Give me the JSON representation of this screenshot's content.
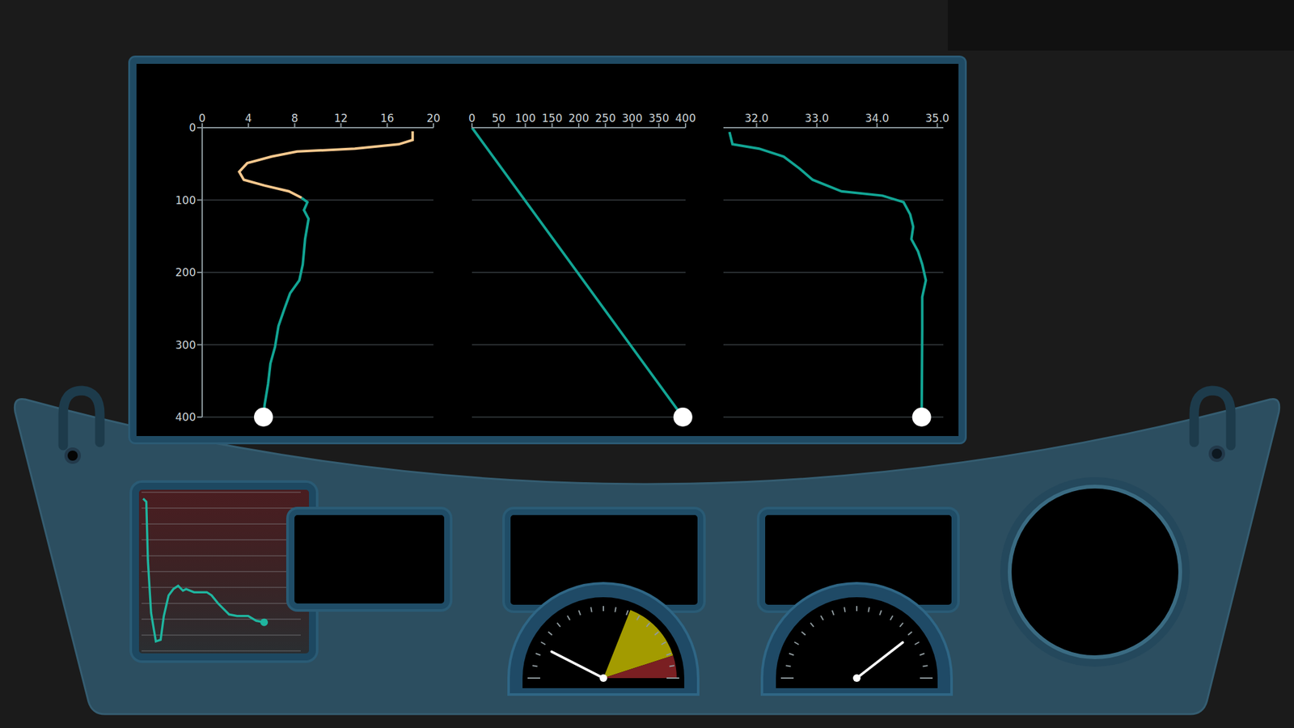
{
  "chart_data": [
    {
      "type": "line",
      "xlim": [
        0,
        20
      ],
      "xticks": [
        0,
        4,
        8,
        12,
        16,
        20
      ],
      "ylim": [
        0,
        400
      ],
      "yticks": [
        0,
        100,
        200,
        300,
        400
      ],
      "grid": true,
      "series": [
        {
          "color": "#f6c88e",
          "x": [
            18.2,
            18.2,
            17.0,
            13.2,
            8.2,
            6.0,
            3.9,
            3.2,
            3.6,
            5.4,
            7.5,
            8.6
          ],
          "y": [
            5,
            17,
            23,
            29,
            33,
            40,
            49,
            61,
            72,
            80,
            88,
            97
          ]
        },
        {
          "color": "#12a594",
          "marker": "end",
          "x": [
            8.6,
            9.1,
            8.8,
            9.2,
            8.9,
            8.7,
            8.4,
            7.6,
            7.1,
            6.6,
            6.3,
            5.9,
            5.7,
            5.4,
            5.3
          ],
          "y": [
            97,
            103,
            114,
            126,
            154,
            189,
            211,
            229,
            251,
            274,
            303,
            326,
            354,
            383,
            400
          ]
        }
      ]
    },
    {
      "type": "line",
      "xlim": [
        0,
        400
      ],
      "xticks": [
        0,
        50,
        100,
        150,
        200,
        250,
        300,
        350,
        400
      ],
      "ylim": [
        0,
        400
      ],
      "yticks": [
        0,
        100,
        200,
        300,
        400
      ],
      "grid": true,
      "tick_labels": "x",
      "series": [
        {
          "color": "#12a594",
          "marker": "end",
          "x": [
            0,
            395
          ],
          "y": [
            0,
            400
          ]
        }
      ]
    },
    {
      "type": "line",
      "xlim": [
        31.45,
        35.1
      ],
      "xticks": [
        {
          "value": 32,
          "label": "32.0"
        },
        {
          "value": 33,
          "label": "33.0"
        },
        {
          "value": 34,
          "label": "34.0"
        },
        {
          "value": 35,
          "label": "35.0"
        }
      ],
      "ylim": [
        0,
        400
      ],
      "yticks": [
        0,
        100,
        200,
        300,
        400
      ],
      "grid": true,
      "tick_labels": "x",
      "series": [
        {
          "color": "#12a594",
          "marker": "end",
          "x": [
            31.55,
            31.6,
            32.04,
            32.45,
            32.72,
            32.93,
            33.41,
            34.09,
            34.44,
            34.55,
            34.6,
            34.57,
            34.68,
            34.75,
            34.81,
            34.75,
            34.75,
            34.74
          ],
          "y": [
            6,
            23,
            29,
            40,
            57,
            72,
            88,
            94,
            103,
            120,
            137,
            154,
            171,
            189,
            211,
            234,
            280,
            400
          ]
        }
      ]
    },
    {
      "type": "line",
      "xlim": [
        0,
        100
      ],
      "ylim": [
        0,
        100
      ],
      "yticks": [
        0,
        10,
        20,
        30,
        40,
        50,
        60,
        70,
        80,
        90,
        100
      ],
      "grid": true,
      "tick_labels": false,
      "series": [
        {
          "color": "#1fb59f",
          "marker": "end",
          "x": [
            1,
            3,
            4,
            6,
            9,
            12,
            14,
            17,
            20,
            23,
            26,
            28,
            33,
            41,
            44,
            48,
            55,
            60,
            67,
            72,
            77
          ],
          "y": [
            96,
            94,
            57,
            24,
            6,
            7,
            22,
            35,
            39,
            41,
            38,
            39,
            37,
            37,
            35,
            30,
            23,
            22,
            22,
            19,
            18
          ]
        }
      ]
    }
  ],
  "gauges": [
    {
      "min": 0,
      "max": 100,
      "value": 15,
      "zones": [
        {
          "from": 62,
          "to": 90,
          "color": "#a39b00"
        },
        {
          "from": 90,
          "to": 100,
          "color": "#7a1f22"
        }
      ]
    },
    {
      "min": 0,
      "max": 100,
      "value": 79
    }
  ]
}
